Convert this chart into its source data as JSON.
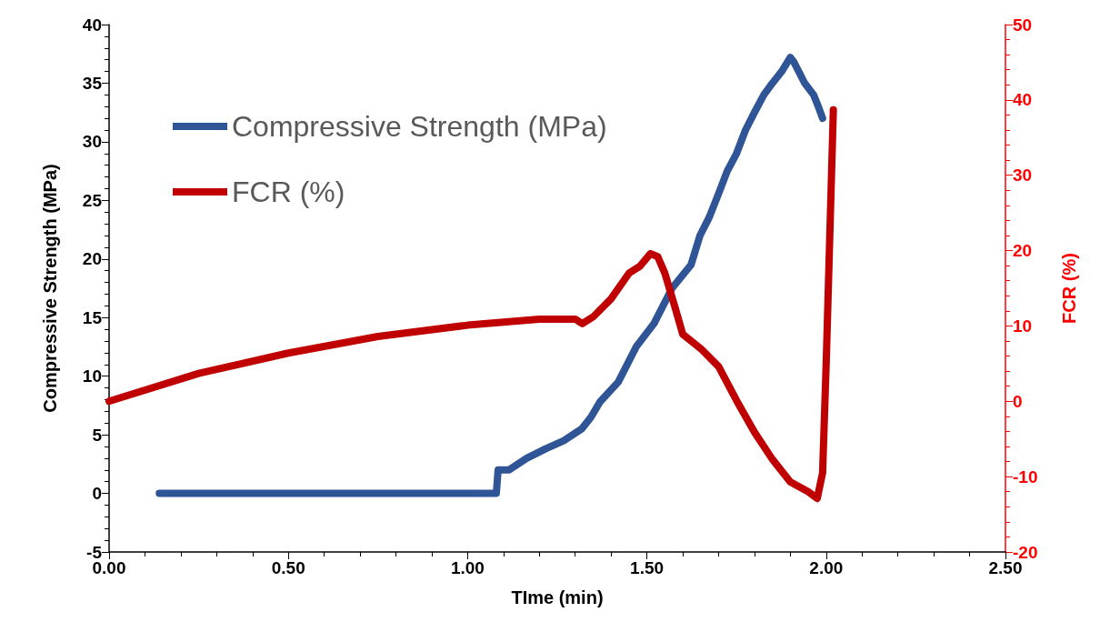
{
  "chart_data": {
    "type": "line",
    "xlabel": "TIme (min)",
    "ylabel": "Compressive Strength (MPa)",
    "y2label": "FCR (%)",
    "xlim": [
      0,
      2.5
    ],
    "xticks": [
      {
        "value": 0,
        "label": "0.00"
      },
      {
        "value": 0.5,
        "label": "0.50"
      },
      {
        "value": 1,
        "label": "1.00"
      },
      {
        "value": 1.5,
        "label": "1.50"
      },
      {
        "value": 2,
        "label": "2.00"
      },
      {
        "value": 2.5,
        "label": "2.50"
      }
    ],
    "ylim": [
      -5,
      40
    ],
    "yticks": [
      -5,
      0,
      5,
      10,
      15,
      20,
      25,
      30,
      35,
      40
    ],
    "y2lim": [
      -20,
      50
    ],
    "y2ticks": [
      -20,
      -10,
      0,
      10,
      20,
      30,
      40,
      50
    ],
    "grid": false,
    "legend": "top left",
    "marker": "none",
    "line_style": "solid",
    "series": [
      {
        "name": "Compressive Strength (MPa)",
        "color": "#2f5597",
        "x": [
          0.14,
          1.08,
          1.085,
          1.115,
          1.165,
          1.217,
          1.268,
          1.318,
          1.344,
          1.369,
          1.42,
          1.47,
          1.52,
          1.57,
          1.623,
          1.648,
          1.673,
          1.699,
          1.724,
          1.75,
          1.775,
          1.8,
          1.826,
          1.85,
          1.876,
          1.9,
          1.91,
          1.94,
          1.965,
          1.978,
          1.99
        ],
        "values": [
          0,
          0,
          2.0,
          2.0,
          3.0,
          3.8,
          4.5,
          5.5,
          6.5,
          7.8,
          9.5,
          12.5,
          14.5,
          17.5,
          19.5,
          22,
          23.5,
          25.5,
          27.5,
          29,
          31,
          32.5,
          34,
          35,
          36,
          37.2,
          36.8,
          35,
          34,
          33,
          32
        ]
      },
      {
        "name": "FCR (%)",
        "color": "#c00000",
        "axis": "y2",
        "x": [
          0,
          0.25,
          0.5,
          0.75,
          1.0,
          1.2,
          1.3,
          1.32,
          1.35,
          1.4,
          1.45,
          1.48,
          1.51,
          1.53,
          1.55,
          1.58,
          1.6,
          1.65,
          1.7,
          1.75,
          1.8,
          1.85,
          1.9,
          1.95,
          1.975,
          1.99,
          2.0,
          2.02
        ],
        "values": [
          0,
          3.7,
          6.4,
          8.6,
          10.1,
          10.9,
          10.9,
          10.3,
          11.2,
          13.6,
          17,
          17.9,
          19.6,
          19.2,
          17,
          12.2,
          8.9,
          7,
          4.6,
          0.1,
          -4.1,
          -7.7,
          -10.7,
          -12,
          -12.9,
          -9.5,
          5,
          38.7
        ]
      }
    ]
  }
}
